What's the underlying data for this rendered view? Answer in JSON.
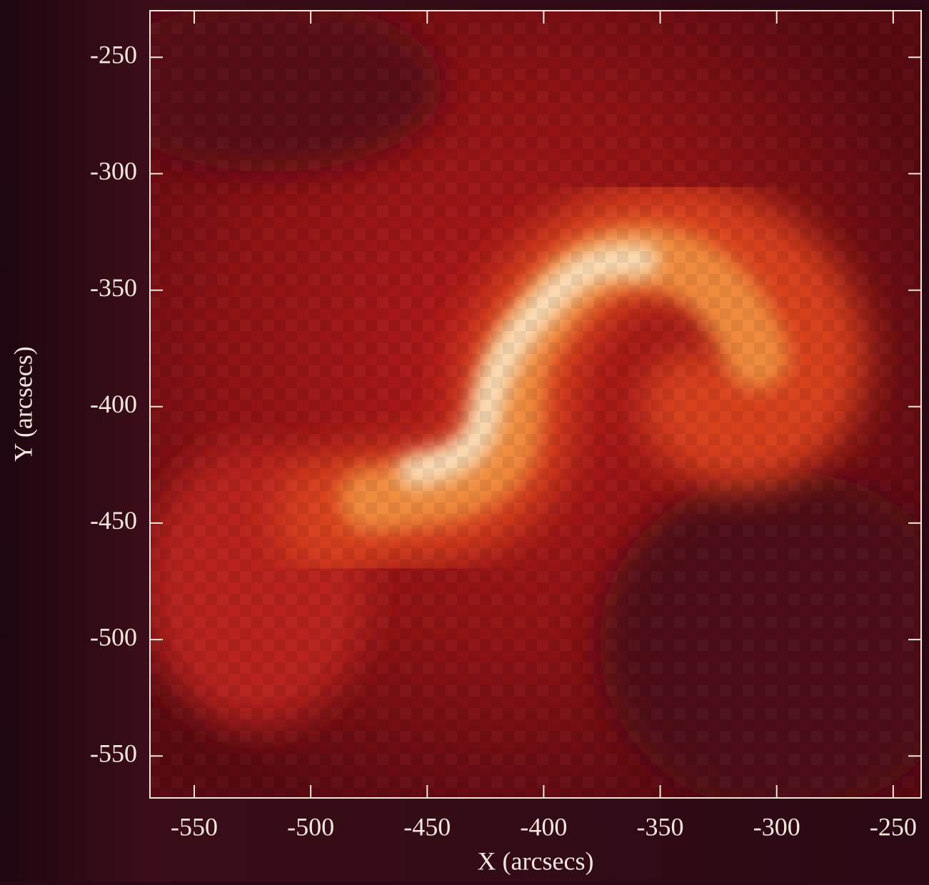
{
  "chart_data": {
    "type": "image",
    "x_label": "X (arcsecs)",
    "y_label": "Y (arcsecs)",
    "xlim": [
      -569,
      -238
    ],
    "xticks": [
      -550,
      -500,
      -450,
      -400,
      -350,
      -300,
      -250
    ],
    "ylim": [
      -568,
      -230
    ],
    "yticks": [
      -550,
      -500,
      -450,
      -400,
      -350,
      -300,
      -250
    ],
    "frame_color": "#f3e6dc"
  }
}
